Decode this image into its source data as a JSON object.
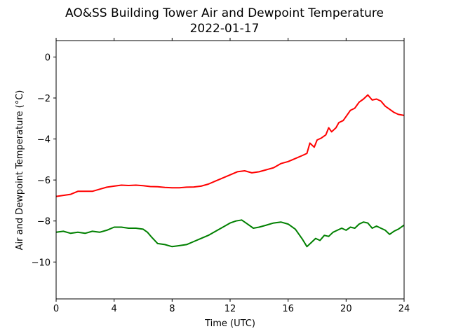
{
  "chart_data": {
    "type": "line",
    "title": "AO&SS Building Tower Air and Dewpoint Temperature",
    "subtitle": "2022-01-17",
    "xlabel": "Time (UTC)",
    "ylabel": "Air and Dewpoint Temperature (°C)",
    "xlim": [
      0,
      24
    ],
    "ylim": [
      -11.8,
      0.8
    ],
    "xticks": [
      0,
      4,
      8,
      12,
      16,
      20,
      24
    ],
    "yticks": [
      -10,
      -8,
      -6,
      -4,
      -2,
      0
    ],
    "grid": false,
    "legend": "none",
    "series": [
      {
        "color": "#ff0000",
        "x": [
          0,
          0.5,
          1,
          1.5,
          2,
          2.5,
          3,
          3.5,
          4,
          4.5,
          5,
          5.5,
          6,
          6.5,
          7,
          7.5,
          8,
          8.5,
          9,
          9.5,
          10,
          10.5,
          11,
          11.5,
          12,
          12.5,
          13,
          13.5,
          14,
          14.5,
          15,
          15.5,
          16,
          16.5,
          17,
          17.3,
          17.5,
          17.8,
          18,
          18.3,
          18.6,
          18.8,
          19,
          19.3,
          19.5,
          19.8,
          20,
          20.3,
          20.6,
          20.9,
          21.2,
          21.5,
          21.8,
          22.1,
          22.4,
          22.7,
          23,
          23.3,
          23.6,
          24
        ],
        "values": [
          -6.8,
          -6.75,
          -6.7,
          -6.55,
          -6.55,
          -6.55,
          -6.45,
          -6.35,
          -6.3,
          -6.25,
          -6.27,
          -6.25,
          -6.28,
          -6.32,
          -6.33,
          -6.36,
          -6.38,
          -6.38,
          -6.35,
          -6.34,
          -6.3,
          -6.2,
          -6.05,
          -5.9,
          -5.75,
          -5.6,
          -5.55,
          -5.65,
          -5.6,
          -5.5,
          -5.4,
          -5.2,
          -5.1,
          -4.95,
          -4.8,
          -4.7,
          -4.2,
          -4.4,
          -4.05,
          -3.95,
          -3.8,
          -3.45,
          -3.65,
          -3.45,
          -3.2,
          -3.1,
          -2.9,
          -2.6,
          -2.5,
          -2.2,
          -2.05,
          -1.85,
          -2.1,
          -2.05,
          -2.15,
          -2.4,
          -2.55,
          -2.7,
          -2.8,
          -2.85
        ]
      },
      {
        "color": "#008000",
        "x": [
          0,
          0.5,
          1,
          1.5,
          2,
          2.5,
          3,
          3.5,
          4,
          4.5,
          5,
          5.5,
          6,
          6.3,
          6.6,
          7,
          7.5,
          8,
          8.5,
          9,
          9.5,
          10,
          10.5,
          11,
          11.5,
          12,
          12.4,
          12.8,
          13.2,
          13.6,
          14,
          14.5,
          15,
          15.5,
          16,
          16.5,
          17,
          17.3,
          17.6,
          17.9,
          18.2,
          18.5,
          18.8,
          19.1,
          19.4,
          19.7,
          20,
          20.3,
          20.6,
          20.9,
          21.2,
          21.5,
          21.8,
          22.1,
          22.4,
          22.7,
          23,
          23.3,
          23.6,
          24
        ],
        "values": [
          -8.55,
          -8.5,
          -8.6,
          -8.55,
          -8.6,
          -8.5,
          -8.55,
          -8.45,
          -8.3,
          -8.3,
          -8.35,
          -8.35,
          -8.4,
          -8.55,
          -8.8,
          -9.1,
          -9.15,
          -9.25,
          -9.2,
          -9.15,
          -9.0,
          -8.85,
          -8.7,
          -8.5,
          -8.3,
          -8.1,
          -8.0,
          -7.95,
          -8.15,
          -8.35,
          -8.3,
          -8.2,
          -8.1,
          -8.05,
          -8.15,
          -8.4,
          -8.9,
          -9.25,
          -9.05,
          -8.85,
          -8.95,
          -8.7,
          -8.75,
          -8.55,
          -8.45,
          -8.35,
          -8.45,
          -8.3,
          -8.35,
          -8.15,
          -8.05,
          -8.1,
          -8.35,
          -8.25,
          -8.35,
          -8.45,
          -8.65,
          -8.5,
          -8.4,
          -8.2
        ]
      }
    ]
  }
}
